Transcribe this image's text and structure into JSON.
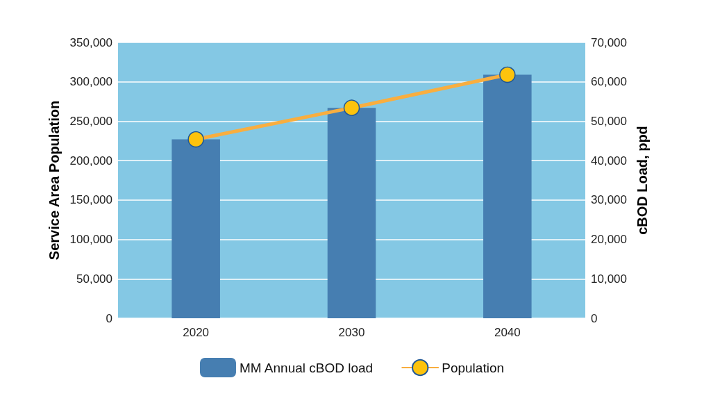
{
  "chart_data": {
    "type": "bar",
    "categories": [
      "2020",
      "2030",
      "2040"
    ],
    "ylabel": "Service Area Population",
    "y2label": "cBOD Load, ppd",
    "ylim": [
      0,
      350000
    ],
    "yticks": [
      0,
      {
        "value": 50000,
        "label": "50,000"
      },
      {
        "value": 100000,
        "label": "100,000"
      },
      {
        "value": 150000,
        "label": "150,000"
      },
      {
        "value": 200000,
        "label": "200,000"
      },
      {
        "value": 250000,
        "label": "250,000"
      },
      {
        "value": 300000,
        "label": "300,000"
      },
      {
        "value": 350000,
        "label": "350,000"
      }
    ],
    "y2lim": [
      0,
      70000
    ],
    "y2ticks": [
      0,
      {
        "value": 10000,
        "label": "10,000"
      },
      {
        "value": 20000,
        "label": "20,000"
      },
      {
        "value": 30000,
        "label": "30,000"
      },
      {
        "value": 40000,
        "label": "40,000"
      },
      {
        "value": 50000,
        "label": "50,000"
      },
      {
        "value": 60000,
        "label": "60,000"
      },
      {
        "value": 70000,
        "label": "70,000"
      }
    ],
    "series": [
      {
        "name": "MM Annual cBOD load",
        "axis": "y2",
        "color": "#467eb1",
        "values": [
          45400,
          53400,
          61800
        ]
      },
      {
        "name": "Population",
        "type": "line",
        "color": "#f9ae3f",
        "values": [
          227000,
          267000,
          309000
        ]
      }
    ],
    "grid": "y",
    "legend": "bottom",
    "marker": "circle",
    "line_style": "solid"
  }
}
